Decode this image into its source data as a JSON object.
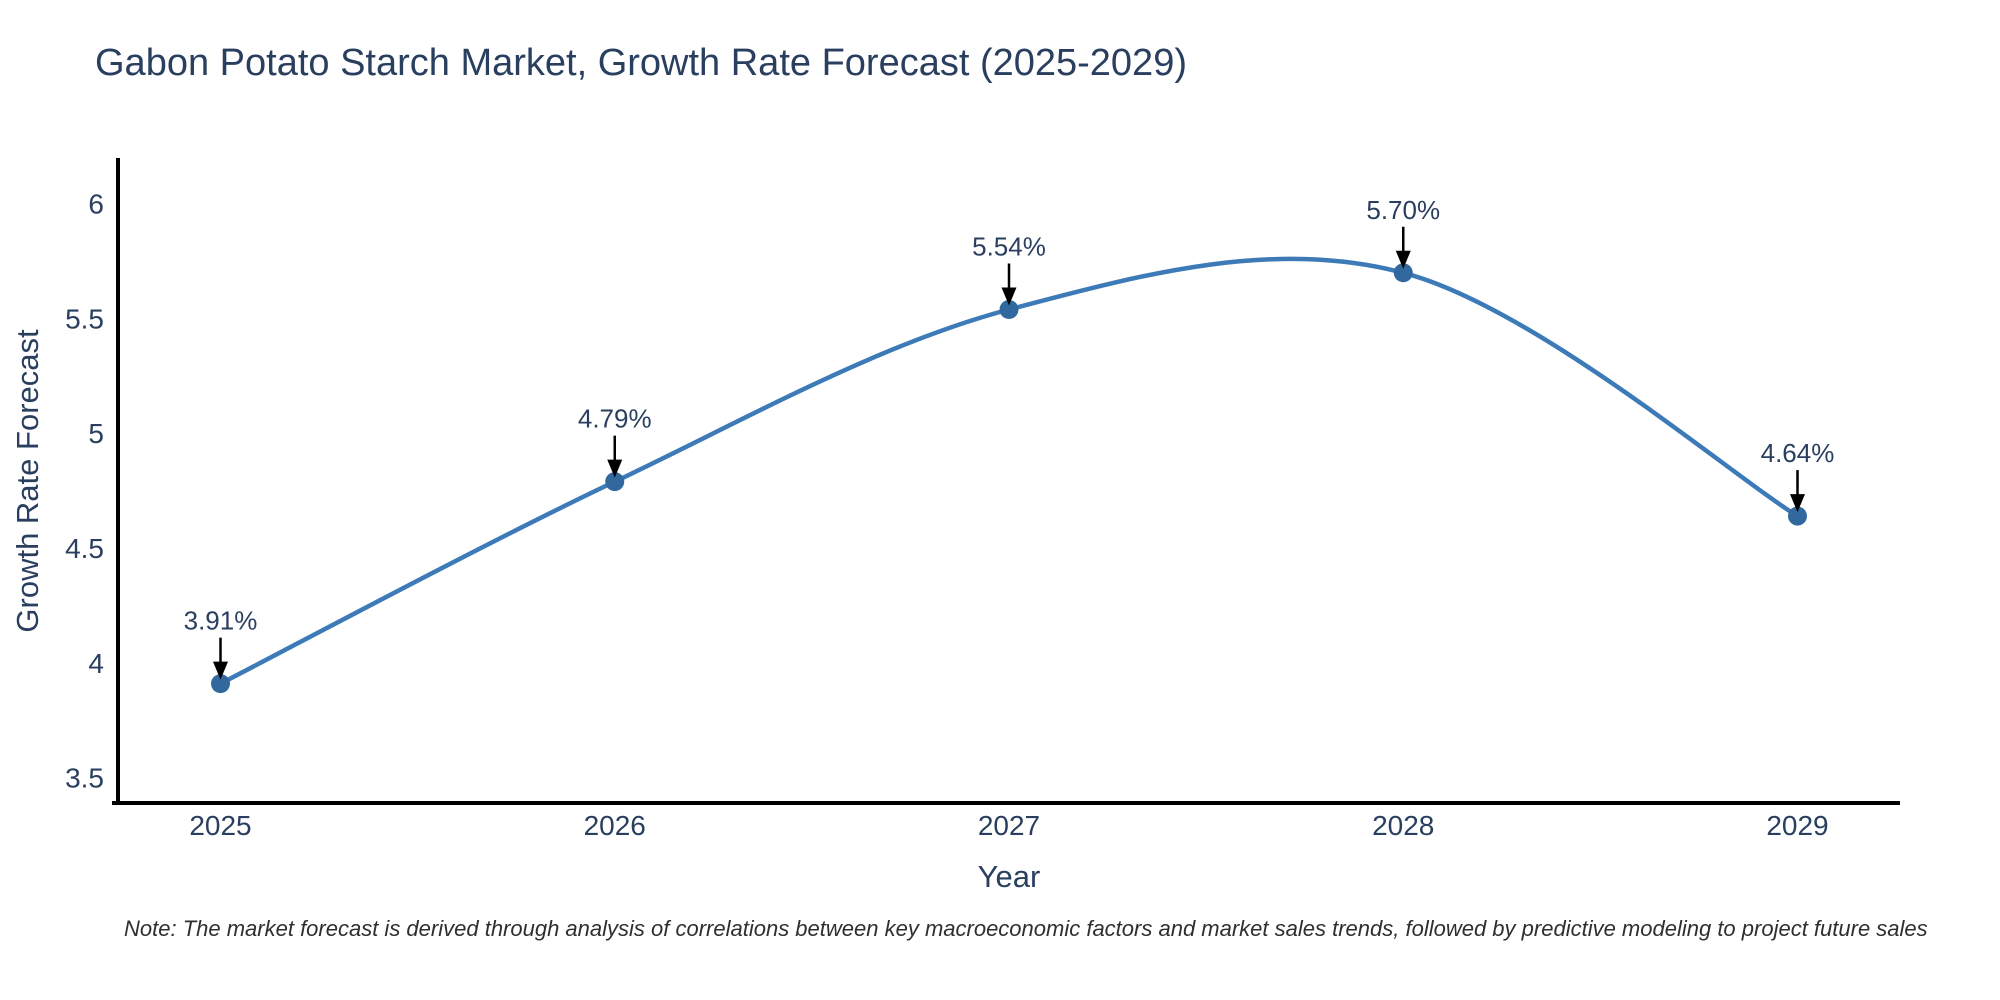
{
  "title": {
    "text": "Gabon Potato Starch Market, Growth Rate Forecast (2025-2029)",
    "color": "#2a3f5f"
  },
  "note": {
    "text": "Note: The market forecast is derived through analysis of correlations between key macroeconomic factors and market sales trends, followed by predictive modeling to project future sales"
  },
  "chart_data": {
    "type": "line",
    "title": "Gabon Potato Starch Market, Growth Rate Forecast (2025-2029)",
    "xlabel": "Year",
    "ylabel": "Growth Rate Forecast",
    "x": [
      2025,
      2026,
      2027,
      2028,
      2029
    ],
    "xticks": [
      "2025",
      "2026",
      "2027",
      "2028",
      "2029"
    ],
    "series": [
      {
        "name": "Growth Rate Forecast",
        "values": [
          3.91,
          4.79,
          5.54,
          5.7,
          4.64
        ]
      }
    ],
    "point_labels": [
      "3.91%",
      "4.79%",
      "5.54%",
      "5.70%",
      "4.64%"
    ],
    "yticks": [
      3.5,
      4,
      4.5,
      5,
      5.5,
      6
    ],
    "xlim": [
      2024.74,
      2029.26
    ],
    "ylim": [
      3.39,
      6.2
    ],
    "line_shape": "spline",
    "grid": false,
    "legend": false,
    "colors": {
      "line": "#3d7ab8",
      "marker": "#31699f",
      "axis": "#000000",
      "tick_text": "#2a3f5f",
      "annotation_text": "#2a3f5f",
      "arrow": "#000000"
    }
  }
}
